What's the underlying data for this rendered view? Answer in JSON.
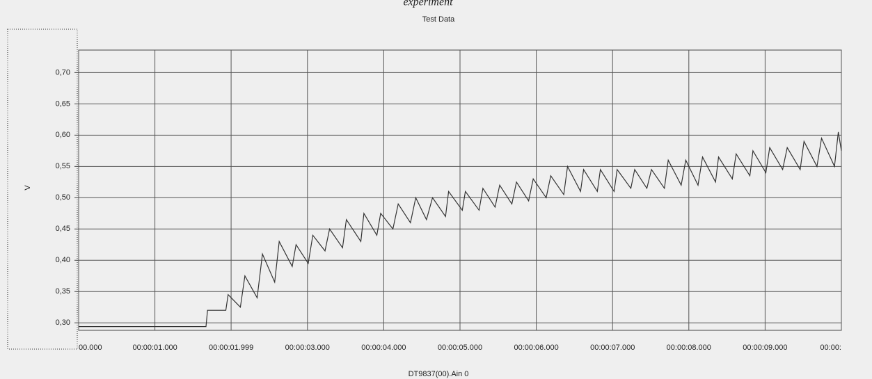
{
  "caption": "experiment",
  "chart_data": {
    "type": "line",
    "title": "Test Data",
    "xlabel": "DT9837(00).Ain 0",
    "ylabel": "V",
    "x": [
      0,
      1.67,
      1.69,
      1.93,
      1.96,
      2.12,
      2.18,
      2.34,
      2.41,
      2.57,
      2.63,
      2.8,
      2.85,
      3.01,
      3.07,
      3.23,
      3.29,
      3.46,
      3.51,
      3.7,
      3.74,
      3.91,
      3.96,
      4.12,
      4.19,
      4.35,
      4.42,
      4.56,
      4.64,
      4.81,
      4.85,
      5.03,
      5.07,
      5.25,
      5.3,
      5.46,
      5.52,
      5.68,
      5.74,
      5.9,
      5.96,
      6.13,
      6.19,
      6.36,
      6.41,
      6.58,
      6.62,
      6.8,
      6.84,
      7.02,
      7.06,
      7.24,
      7.29,
      7.45,
      7.51,
      7.68,
      7.73,
      7.9,
      7.96,
      8.12,
      8.18,
      8.35,
      8.39,
      8.57,
      8.62,
      8.8,
      8.84,
      9.01,
      9.06,
      9.23,
      9.29,
      9.46,
      9.51,
      9.68,
      9.74,
      9.91,
      9.96,
      10.0
    ],
    "values": [
      0.294,
      0.294,
      0.32,
      0.32,
      0.345,
      0.325,
      0.375,
      0.34,
      0.41,
      0.365,
      0.43,
      0.39,
      0.425,
      0.395,
      0.44,
      0.415,
      0.45,
      0.42,
      0.465,
      0.43,
      0.475,
      0.44,
      0.475,
      0.45,
      0.49,
      0.46,
      0.5,
      0.465,
      0.5,
      0.47,
      0.51,
      0.48,
      0.51,
      0.48,
      0.515,
      0.485,
      0.52,
      0.49,
      0.525,
      0.495,
      0.53,
      0.5,
      0.535,
      0.505,
      0.55,
      0.51,
      0.545,
      0.51,
      0.545,
      0.51,
      0.545,
      0.515,
      0.545,
      0.515,
      0.545,
      0.515,
      0.56,
      0.52,
      0.56,
      0.52,
      0.565,
      0.525,
      0.565,
      0.53,
      0.57,
      0.535,
      0.575,
      0.54,
      0.58,
      0.545,
      0.58,
      0.545,
      0.59,
      0.55,
      0.595,
      0.55,
      0.605,
      0.575
    ],
    "color": "#333333",
    "xlim": [
      0,
      10
    ],
    "ylim": [
      0.288,
      0.736
    ],
    "xticks": [
      {
        "value": 0,
        "label": "00.000"
      },
      {
        "value": 1,
        "label": "00:00:01.000"
      },
      {
        "value": 1.999,
        "label": "00:00:01.999"
      },
      {
        "value": 3,
        "label": "00:00:03.000"
      },
      {
        "value": 4,
        "label": "00:00:04.000"
      },
      {
        "value": 5,
        "label": "00:00:05.000"
      },
      {
        "value": 6,
        "label": "00:00:06.000"
      },
      {
        "value": 7,
        "label": "00:00:07.000"
      },
      {
        "value": 8,
        "label": "00:00:08.000"
      },
      {
        "value": 9,
        "label": "00:00:09.000"
      },
      {
        "value": 10,
        "label": "00:00:"
      }
    ],
    "yticks": [
      {
        "value": 0.3,
        "label": "0,30"
      },
      {
        "value": 0.35,
        "label": "0,35"
      },
      {
        "value": 0.4,
        "label": "0,40"
      },
      {
        "value": 0.45,
        "label": "0,45"
      },
      {
        "value": 0.5,
        "label": "0,50"
      },
      {
        "value": 0.55,
        "label": "0,55"
      },
      {
        "value": 0.6,
        "label": "0,60"
      },
      {
        "value": 0.65,
        "label": "0,65"
      },
      {
        "value": 0.7,
        "label": "0,70"
      }
    ],
    "grid": true
  }
}
